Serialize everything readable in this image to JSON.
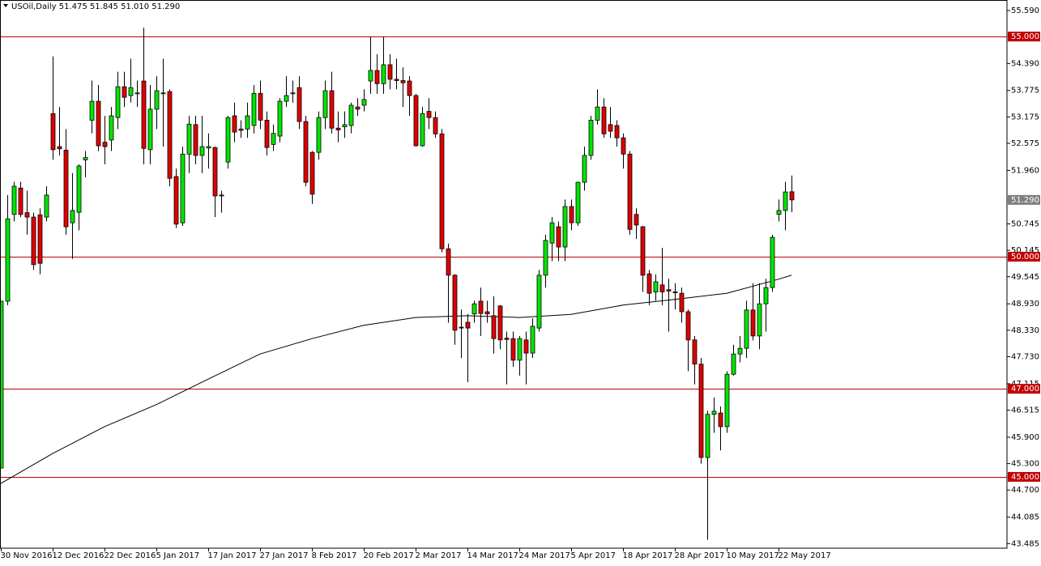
{
  "chart_data": {
    "type": "candlestick",
    "title": "USOil,Daily  51.475 51.845 51.010 51.290",
    "categories": [
      "30 Nov 2016",
      null,
      null,
      null,
      null,
      null,
      null,
      null,
      "12 Dec 2016",
      null,
      null,
      null,
      null,
      null,
      null,
      null,
      "22 Dec 2016",
      null,
      null,
      null,
      null,
      null,
      null,
      null,
      "5 Jan 2017",
      null,
      null,
      null,
      null,
      null,
      null,
      null,
      "17 Jan 2017",
      null,
      null,
      null,
      null,
      null,
      null,
      null,
      "27 Jan 2017",
      null,
      null,
      null,
      null,
      null,
      null,
      null,
      "8 Feb 2017",
      null,
      null,
      null,
      null,
      null,
      null,
      null,
      "20 Feb 2017",
      null,
      null,
      null,
      null,
      null,
      null,
      null,
      "2 Mar 2017",
      null,
      null,
      null,
      null,
      null,
      null,
      null,
      "14 Mar 2017",
      null,
      null,
      null,
      null,
      null,
      null,
      null,
      "24 Mar 2017",
      null,
      null,
      null,
      null,
      null,
      null,
      null,
      "5 Apr 2017",
      null,
      null,
      null,
      null,
      null,
      null,
      null,
      "18 Apr 2017",
      null,
      null,
      null,
      null,
      null,
      null,
      null,
      "28 Apr 2017",
      null,
      null,
      null,
      null,
      null,
      null,
      null,
      "10 May 2017",
      null,
      null,
      null,
      null,
      null,
      null,
      null,
      "22 May 2017",
      null,
      null
    ],
    "open": [
      45.2,
      48.99,
      50.96,
      51.56,
      51.0,
      50.9,
      50.95,
      50.9,
      53.25,
      52.5,
      52.42,
      50.77,
      51.01,
      52.2,
      53.1,
      53.53,
      52.6,
      52.65,
      53.16,
      53.86,
      53.66,
      53.7,
      53.99,
      52.43,
      53.35,
      53.7,
      53.75,
      51.82,
      50.77,
      52.33,
      53.0,
      52.3,
      52.47,
      52.48,
      51.4,
      52.15,
      53.2,
      52.9,
      52.9,
      52.98,
      53.71,
      53.1,
      52.55,
      52.74,
      53.53,
      53.7,
      53.84,
      53.07,
      52.37,
      52.37,
      53.16,
      53.77,
      52.92,
      52.95,
      52.98,
      53.4,
      53.44,
      53.99,
      54.23,
      53.93,
      54.36,
      54.03,
      54.0,
      53.99,
      53.66,
      52.52,
      53.3,
      53.16,
      52.79,
      50.18,
      49.58,
      48.4,
      48.51,
      48.7,
      48.99,
      48.75,
      48.66,
      48.88,
      48.15,
      48.14,
      47.65,
      48.11,
      47.81,
      48.38,
      49.58,
      50.31,
      50.68,
      50.22,
      51.14,
      50.77,
      51.69,
      52.3,
      53.1,
      53.4,
      53.0,
      52.98,
      52.7,
      52.33,
      50.96,
      50.68,
      49.61,
      49.2,
      49.36,
      49.25,
      49.2,
      49.17,
      48.75,
      48.11,
      47.56,
      45.44,
      46.42,
      46.45,
      46.14,
      47.33,
      47.79,
      47.92,
      48.79,
      48.2,
      48.93,
      49.3,
      50.96,
      51.05,
      51.475
    ],
    "high": [
      48.99,
      51.4,
      51.7,
      51.7,
      51.5,
      51.0,
      51.1,
      51.6,
      54.55,
      53.4,
      52.9,
      51.9,
      52.1,
      52.4,
      54.0,
      53.9,
      53.2,
      53.4,
      54.2,
      54.2,
      54.5,
      54.0,
      55.2,
      53.9,
      54.1,
      54.5,
      53.8,
      52.0,
      52.5,
      53.2,
      53.2,
      53.2,
      52.8,
      52.5,
      51.5,
      53.2,
      53.5,
      53.1,
      53.5,
      53.9,
      54.0,
      53.3,
      53.0,
      53.6,
      54.1,
      54.0,
      54.1,
      53.2,
      52.4,
      53.3,
      54.0,
      54.2,
      53.3,
      53.3,
      53.5,
      53.6,
      53.8,
      55.0,
      54.6,
      55.0,
      54.6,
      54.5,
      54.3,
      54.1,
      53.7,
      53.4,
      53.6,
      53.3,
      52.9,
      50.3,
      49.6,
      48.8,
      48.7,
      49.0,
      49.3,
      49.0,
      49.1,
      48.9,
      48.3,
      48.3,
      48.2,
      48.3,
      48.6,
      49.7,
      50.5,
      50.9,
      50.8,
      51.3,
      51.3,
      51.7,
      52.5,
      53.2,
      53.8,
      53.6,
      53.4,
      53.1,
      52.8,
      52.4,
      51.1,
      50.7,
      49.7,
      49.6,
      50.2,
      49.5,
      49.4,
      49.3,
      48.8,
      48.2,
      47.7,
      46.5,
      46.8,
      46.6,
      47.4,
      48.0,
      48.2,
      49.0,
      49.4,
      49.4,
      49.5,
      50.5,
      51.3,
      51.7,
      51.845
    ],
    "low": [
      45.2,
      48.9,
      50.8,
      50.9,
      50.5,
      49.7,
      49.6,
      50.8,
      52.2,
      52.3,
      50.5,
      49.95,
      50.6,
      51.8,
      52.8,
      52.4,
      52.1,
      52.4,
      52.9,
      53.4,
      53.5,
      53.4,
      52.1,
      52.1,
      52.9,
      52.5,
      51.6,
      50.65,
      50.7,
      51.9,
      52.1,
      51.9,
      52.0,
      50.9,
      51.0,
      52.0,
      52.6,
      52.7,
      52.7,
      52.8,
      52.9,
      52.3,
      52.4,
      52.6,
      53.4,
      53.5,
      52.9,
      51.6,
      51.2,
      52.2,
      52.9,
      52.8,
      52.6,
      52.7,
      52.8,
      53.2,
      53.3,
      53.7,
      53.7,
      53.7,
      53.8,
      53.8,
      53.4,
      53.2,
      52.5,
      52.5,
      52.9,
      52.7,
      50.1,
      48.5,
      48.0,
      47.7,
      47.15,
      48.5,
      48.2,
      48.5,
      47.8,
      47.9,
      47.1,
      47.5,
      47.3,
      47.1,
      47.7,
      48.3,
      49.3,
      49.9,
      49.9,
      49.9,
      50.6,
      50.7,
      51.5,
      52.2,
      53.0,
      52.7,
      52.7,
      52.5,
      52.0,
      50.5,
      50.4,
      49.2,
      48.9,
      49.0,
      48.9,
      48.3,
      48.8,
      48.5,
      47.4,
      47.1,
      45.3,
      43.57,
      46.0,
      45.6,
      46.0,
      47.3,
      47.6,
      47.7,
      48.1,
      47.9,
      48.3,
      49.2,
      50.8,
      50.6,
      51.01
    ],
    "close": [
      48.99,
      50.86,
      51.6,
      50.96,
      50.9,
      49.82,
      49.85,
      51.4,
      52.43,
      52.45,
      50.68,
      51.05,
      52.06,
      52.25,
      53.53,
      52.52,
      52.5,
      53.2,
      53.86,
      53.62,
      53.84,
      53.72,
      52.46,
      53.35,
      53.77,
      53.72,
      51.78,
      50.74,
      52.33,
      53.01,
      52.3,
      52.5,
      52.5,
      51.38,
      51.38,
      53.16,
      52.83,
      52.87,
      53.2,
      53.71,
      53.1,
      52.48,
      52.8,
      53.53,
      53.66,
      53.72,
      53.07,
      51.69,
      51.42,
      53.16,
      53.77,
      52.92,
      52.88,
      53.0,
      53.44,
      53.35,
      53.57,
      54.23,
      53.93,
      54.36,
      54.03,
      54.0,
      53.95,
      53.66,
      52.52,
      53.25,
      53.16,
      52.79,
      50.18,
      49.58,
      48.33,
      48.38,
      48.38,
      48.93,
      48.71,
      48.7,
      48.14,
      48.11,
      48.12,
      47.65,
      48.14,
      47.81,
      48.42,
      49.58,
      50.37,
      50.77,
      50.22,
      51.14,
      50.77,
      51.69,
      52.3,
      53.1,
      53.4,
      52.79,
      52.85,
      52.7,
      52.33,
      50.62,
      50.72,
      49.58,
      49.17,
      49.43,
      49.2,
      49.22,
      49.18,
      48.75,
      48.11,
      47.56,
      45.44,
      46.42,
      46.49,
      46.14,
      47.33,
      47.79,
      47.92,
      48.79,
      48.2,
      48.93,
      49.3,
      50.44,
      51.05,
      51.47,
      51.29
    ],
    "up_color": "#00e600",
    "down_color": "#e00000",
    "ma": {
      "bars": [
        0,
        8,
        16,
        24,
        32,
        40,
        48,
        56,
        64,
        72,
        80,
        88,
        96,
        104,
        112,
        120,
        122
      ],
      "values": [
        44.85,
        45.53,
        46.14,
        46.64,
        47.22,
        47.79,
        48.14,
        48.44,
        48.62,
        48.66,
        48.62,
        48.69,
        48.9,
        49.03,
        49.17,
        49.49,
        49.58
      ],
      "color": "#000000"
    },
    "levels": [
      {
        "value": 55,
        "label": "55.000"
      },
      {
        "value": 50,
        "label": "50.000"
      },
      {
        "value": 47,
        "label": "47.000"
      },
      {
        "value": 45,
        "label": "45.000"
      }
    ],
    "level_color": "#c00000",
    "last_price": {
      "value": 51.29,
      "label": "51.290"
    },
    "ylim": [
      43.38,
      55.83
    ],
    "yticks": [
      {
        "value": 55.59,
        "label": "55.590"
      },
      {
        "value": 54.39,
        "label": "54.390"
      },
      {
        "value": 53.775,
        "label": "53.775"
      },
      {
        "value": 53.175,
        "label": "53.175"
      },
      {
        "value": 52.575,
        "label": "52.575"
      },
      {
        "value": 51.96,
        "label": "51.960"
      },
      {
        "value": 50.745,
        "label": "50.745"
      },
      {
        "value": 50.145,
        "label": "50.145"
      },
      {
        "value": 49.545,
        "label": "49.545"
      },
      {
        "value": 48.93,
        "label": "48.930"
      },
      {
        "value": 48.33,
        "label": "48.330"
      },
      {
        "value": 47.73,
        "label": "47.730"
      },
      {
        "value": 47.115,
        "label": "47.115"
      },
      {
        "value": 46.515,
        "label": "46.515"
      },
      {
        "value": 45.9,
        "label": "45.900"
      },
      {
        "value": 45.3,
        "label": "45.300"
      },
      {
        "value": 44.7,
        "label": "44.700"
      },
      {
        "value": 44.085,
        "label": "44.085"
      },
      {
        "value": 43.485,
        "label": "43.485"
      }
    ]
  }
}
